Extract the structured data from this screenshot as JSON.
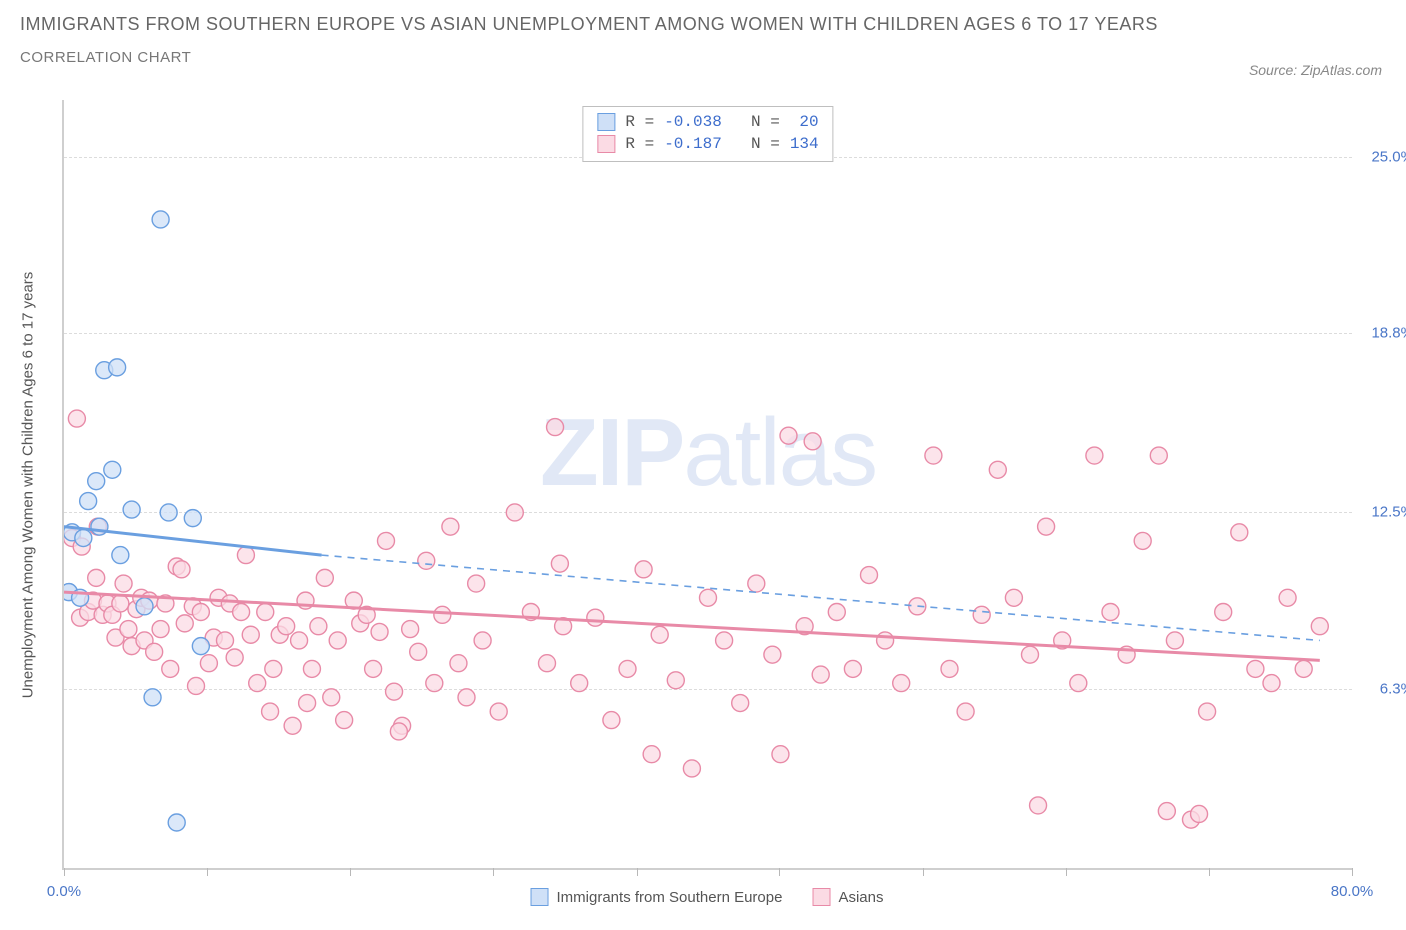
{
  "title": "IMMIGRANTS FROM SOUTHERN EUROPE VS ASIAN UNEMPLOYMENT AMONG WOMEN WITH CHILDREN AGES 6 TO 17 YEARS",
  "subtitle": "CORRELATION CHART",
  "source_label": "Source: ZipAtlas.com",
  "watermark_a": "ZIP",
  "watermark_b": "atlas",
  "y_axis_title": "Unemployment Among Women with Children Ages 6 to 17 years",
  "chart": {
    "type": "scatter",
    "background_color": "#ffffff",
    "grid_color": "#dcdcdc",
    "axis_color": "#cfcfcf",
    "tick_label_color": "#4a76c7",
    "xlim": [
      0,
      80
    ],
    "ylim": [
      0,
      27
    ],
    "x_ticks": [
      0,
      8.89,
      17.78,
      26.67,
      35.56,
      44.44,
      53.33,
      62.22,
      71.11,
      80
    ],
    "x_tick_labels": {
      "0": "0.0%",
      "80": "80.0%"
    },
    "y_ticks": [
      6.3,
      12.5,
      18.8,
      25.0
    ],
    "y_tick_labels": [
      "6.3%",
      "12.5%",
      "18.8%",
      "25.0%"
    ],
    "marker_radius": 8.5,
    "marker_stroke_width": 1.4,
    "trend_line_width": 3,
    "trend_dash": "7,6"
  },
  "series": [
    {
      "name": "Immigrants from Southern Europe",
      "fill": "#cfe0f7",
      "stroke": "#6a9fe0",
      "R": "-0.038",
      "N": "20",
      "trend": {
        "x1": 0,
        "y1": 12.0,
        "x2": 16,
        "y2": 11.0,
        "dash_x2": 78,
        "dash_y2": 8.0
      },
      "points": [
        [
          0.3,
          9.7
        ],
        [
          0.3,
          9.7
        ],
        [
          0.5,
          11.8
        ],
        [
          1.0,
          9.5
        ],
        [
          1.2,
          11.6
        ],
        [
          1.5,
          12.9
        ],
        [
          2.0,
          13.6
        ],
        [
          2.2,
          12.0
        ],
        [
          2.5,
          17.5
        ],
        [
          3.0,
          14.0
        ],
        [
          3.3,
          17.6
        ],
        [
          3.5,
          11.0
        ],
        [
          4.2,
          12.6
        ],
        [
          5.0,
          9.2
        ],
        [
          5.5,
          6.0
        ],
        [
          6.0,
          22.8
        ],
        [
          6.5,
          12.5
        ],
        [
          7.0,
          1.6
        ],
        [
          8.0,
          12.3
        ],
        [
          8.5,
          7.8
        ]
      ]
    },
    {
      "name": "Asians",
      "fill": "#fbdbe4",
      "stroke": "#e88aa7",
      "R": "-0.187",
      "N": "134",
      "trend": {
        "x1": 0,
        "y1": 9.7,
        "x2": 78,
        "y2": 7.3
      },
      "points": [
        [
          0.5,
          11.6
        ],
        [
          0.8,
          15.8
        ],
        [
          1.0,
          8.8
        ],
        [
          1.1,
          11.3
        ],
        [
          1.5,
          9.0
        ],
        [
          1.8,
          9.4
        ],
        [
          2.0,
          10.2
        ],
        [
          2.1,
          12.0
        ],
        [
          2.4,
          8.9
        ],
        [
          2.7,
          9.3
        ],
        [
          3.0,
          8.9
        ],
        [
          3.2,
          8.1
        ],
        [
          3.5,
          9.3
        ],
        [
          3.7,
          10.0
        ],
        [
          4.0,
          8.4
        ],
        [
          4.2,
          7.8
        ],
        [
          4.5,
          9.1
        ],
        [
          4.8,
          9.5
        ],
        [
          5.0,
          8.0
        ],
        [
          5.3,
          9.4
        ],
        [
          5.6,
          7.6
        ],
        [
          6.0,
          8.4
        ],
        [
          6.3,
          9.3
        ],
        [
          6.6,
          7.0
        ],
        [
          7.0,
          10.6
        ],
        [
          7.3,
          10.5
        ],
        [
          7.5,
          8.6
        ],
        [
          8.0,
          9.2
        ],
        [
          8.2,
          6.4
        ],
        [
          8.5,
          9.0
        ],
        [
          9.0,
          7.2
        ],
        [
          9.3,
          8.1
        ],
        [
          9.6,
          9.5
        ],
        [
          10.0,
          8.0
        ],
        [
          10.3,
          9.3
        ],
        [
          10.6,
          7.4
        ],
        [
          11.0,
          9.0
        ],
        [
          11.3,
          11.0
        ],
        [
          11.6,
          8.2
        ],
        [
          12.0,
          6.5
        ],
        [
          12.5,
          9.0
        ],
        [
          13.0,
          7.0
        ],
        [
          13.4,
          8.2
        ],
        [
          13.8,
          8.5
        ],
        [
          14.2,
          5.0
        ],
        [
          14.6,
          8.0
        ],
        [
          15.0,
          9.4
        ],
        [
          15.4,
          7.0
        ],
        [
          15.8,
          8.5
        ],
        [
          16.2,
          10.2
        ],
        [
          16.6,
          6.0
        ],
        [
          17.0,
          8.0
        ],
        [
          17.4,
          5.2
        ],
        [
          18.0,
          9.4
        ],
        [
          18.4,
          8.6
        ],
        [
          18.8,
          8.9
        ],
        [
          19.2,
          7.0
        ],
        [
          19.6,
          8.3
        ],
        [
          20.0,
          11.5
        ],
        [
          20.5,
          6.2
        ],
        [
          21.0,
          5.0
        ],
        [
          21.5,
          8.4
        ],
        [
          22.0,
          7.6
        ],
        [
          22.5,
          10.8
        ],
        [
          23.0,
          6.5
        ],
        [
          23.5,
          8.9
        ],
        [
          24.0,
          12.0
        ],
        [
          24.5,
          7.2
        ],
        [
          25.0,
          6.0
        ],
        [
          26.0,
          8.0
        ],
        [
          27.0,
          5.5
        ],
        [
          28.0,
          12.5
        ],
        [
          29.0,
          9.0
        ],
        [
          30.0,
          7.2
        ],
        [
          30.5,
          15.5
        ],
        [
          31.0,
          8.5
        ],
        [
          32.0,
          6.5
        ],
        [
          33.0,
          8.8
        ],
        [
          34.0,
          5.2
        ],
        [
          35.0,
          7.0
        ],
        [
          36.0,
          10.5
        ],
        [
          36.5,
          4.0
        ],
        [
          37.0,
          8.2
        ],
        [
          38.0,
          6.6
        ],
        [
          39.0,
          3.5
        ],
        [
          40.0,
          9.5
        ],
        [
          41.0,
          8.0
        ],
        [
          42.0,
          5.8
        ],
        [
          43.0,
          10.0
        ],
        [
          44.0,
          7.5
        ],
        [
          44.5,
          4.0
        ],
        [
          45.0,
          15.2
        ],
        [
          46.0,
          8.5
        ],
        [
          47.0,
          6.8
        ],
        [
          48.0,
          9.0
        ],
        [
          49.0,
          7.0
        ],
        [
          50.0,
          10.3
        ],
        [
          51.0,
          8.0
        ],
        [
          52.0,
          6.5
        ],
        [
          53.0,
          9.2
        ],
        [
          54.0,
          14.5
        ],
        [
          55.0,
          7.0
        ],
        [
          56.0,
          5.5
        ],
        [
          57.0,
          8.9
        ],
        [
          58.0,
          14.0
        ],
        [
          59.0,
          9.5
        ],
        [
          60.0,
          7.5
        ],
        [
          60.5,
          2.2
        ],
        [
          61.0,
          12.0
        ],
        [
          62.0,
          8.0
        ],
        [
          63.0,
          6.5
        ],
        [
          64.0,
          14.5
        ],
        [
          65.0,
          9.0
        ],
        [
          66.0,
          7.5
        ],
        [
          67.0,
          11.5
        ],
        [
          68.0,
          14.5
        ],
        [
          68.5,
          2.0
        ],
        [
          69.0,
          8.0
        ],
        [
          70.0,
          1.7
        ],
        [
          70.5,
          1.9
        ],
        [
          71.0,
          5.5
        ],
        [
          72.0,
          9.0
        ],
        [
          73.0,
          11.8
        ],
        [
          74.0,
          7.0
        ],
        [
          75.0,
          6.5
        ],
        [
          76.0,
          9.5
        ],
        [
          77.0,
          7.0
        ],
        [
          78.0,
          8.5
        ],
        [
          46.5,
          15.0
        ],
        [
          30.8,
          10.7
        ],
        [
          25.6,
          10.0
        ],
        [
          20.8,
          4.8
        ],
        [
          15.1,
          5.8
        ],
        [
          12.8,
          5.5
        ]
      ]
    }
  ],
  "legend_bottom": {
    "series1_label": "Immigrants from Southern Europe",
    "series2_label": "Asians"
  }
}
